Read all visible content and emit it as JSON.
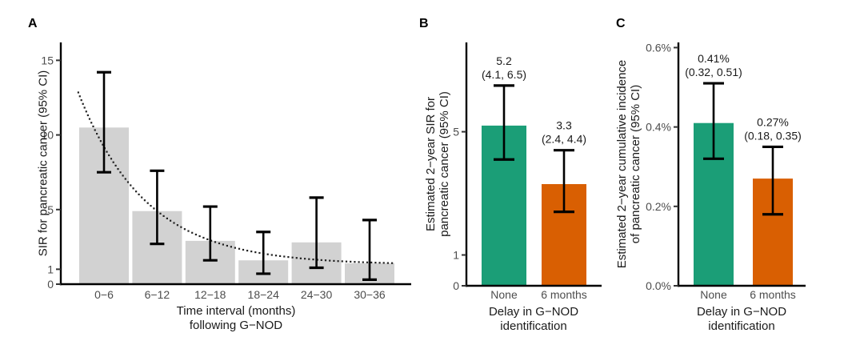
{
  "style": {
    "background": "#ffffff",
    "axis_color": "#000000",
    "tick_mark_color": "#333333",
    "tick_label_color": "#4d4d4d",
    "text_color": "#1a1a1a",
    "error_bar_color": "#000000",
    "trend_dot_color": "#222222",
    "bar_gray": "#d2d2d2",
    "green": "#1b9e77",
    "orange": "#d95f02"
  },
  "chart_data": [
    {
      "type": "bar",
      "panel_label": "A",
      "ylabel": "SIR for pancreatic cancer (95% CI)",
      "xlabel_lines": [
        "Time interval (months)",
        "following G−NOD"
      ],
      "categories": [
        "0−6",
        "6−12",
        "12−18",
        "18−24",
        "24−30",
        "30−36"
      ],
      "values": [
        10.5,
        4.9,
        2.9,
        1.6,
        2.8,
        1.4
      ],
      "ci_low": [
        7.5,
        2.7,
        1.6,
        0.7,
        1.1,
        0.3
      ],
      "ci_high": [
        14.2,
        7.6,
        5.2,
        3.5,
        5.8,
        4.3
      ],
      "bar_color": "#d2d2d2",
      "yticks": [
        0,
        1,
        5,
        10,
        15
      ],
      "ytick_labels": [
        "0",
        "1",
        "5",
        "10",
        "15"
      ],
      "ylim": [
        0,
        16.2
      ],
      "grid": false,
      "legend": null,
      "trend_curve": {
        "style": "dotted",
        "model": "a*exp(-k*t)+c",
        "a": 11.7,
        "k": 0.131,
        "c": 1.3,
        "t_range_months": [
          0.1,
          35.9
        ]
      }
    },
    {
      "type": "bar",
      "panel_label": "B",
      "ylabel_lines": [
        "Estimated 2−year SIR for",
        "pancreatic cancer (95% CI)"
      ],
      "xlabel_lines": [
        "Delay in G−NOD",
        "identification"
      ],
      "categories": [
        "None",
        "6 months"
      ],
      "values": [
        5.2,
        3.3
      ],
      "ci_low": [
        4.1,
        2.4
      ],
      "ci_high": [
        6.5,
        4.4
      ],
      "bar_colors": [
        "#1b9e77",
        "#d95f02"
      ],
      "annotations": [
        [
          "5.2",
          "(4.1, 6.5)"
        ],
        [
          "3.3",
          "(2.4, 4.4)"
        ]
      ],
      "yticks": [
        0,
        1,
        5
      ],
      "ytick_labels": [
        "0",
        "1",
        "5"
      ],
      "ylim": [
        0,
        7.9
      ],
      "grid": false,
      "legend": null
    },
    {
      "type": "bar",
      "panel_label": "C",
      "ylabel_lines": [
        "Estimated 2−year cumulative incidence",
        "of pancreatic cancer (95% CI)"
      ],
      "xlabel_lines": [
        "Delay in G−NOD",
        "identification"
      ],
      "categories": [
        "None",
        "6 months"
      ],
      "values": [
        0.41,
        0.27
      ],
      "ci_low": [
        0.32,
        0.18
      ],
      "ci_high": [
        0.51,
        0.35
      ],
      "bar_colors": [
        "#1b9e77",
        "#d95f02"
      ],
      "annotations": [
        [
          "0.41%",
          "(0.32, 0.51)"
        ],
        [
          "0.27%",
          "(0.18, 0.35)"
        ]
      ],
      "yticks": [
        0,
        0.2,
        0.4,
        0.6
      ],
      "ytick_labels": [
        "0.0%",
        "0.2%",
        "0.4%",
        "0.6%"
      ],
      "ylim": [
        0,
        0.613
      ],
      "grid": false,
      "legend": null
    }
  ]
}
